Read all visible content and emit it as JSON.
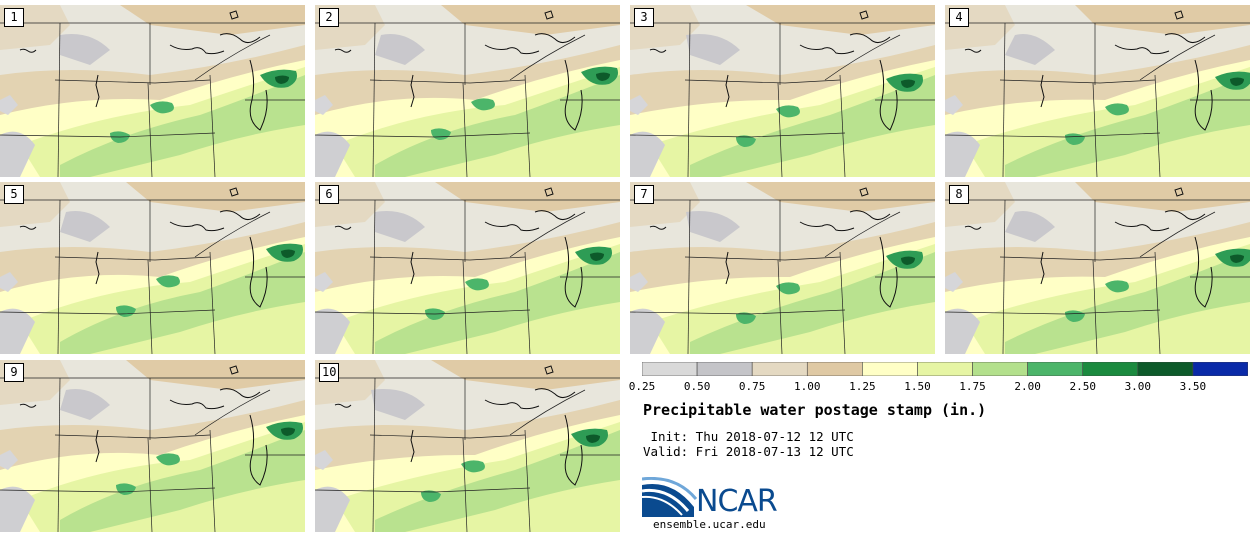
{
  "panels": [
    {
      "label": "1",
      "variant": 0
    },
    {
      "label": "2",
      "variant": 1
    },
    {
      "label": "3",
      "variant": 2
    },
    {
      "label": "4",
      "variant": 3
    },
    {
      "label": "5",
      "variant": 1
    },
    {
      "label": "6",
      "variant": 0
    },
    {
      "label": "7",
      "variant": 2
    },
    {
      "label": "8",
      "variant": 3
    },
    {
      "label": "9",
      "variant": 1
    },
    {
      "label": "10",
      "variant": 2
    }
  ],
  "colorbar": {
    "colors": [
      "#d9d9d9",
      "#c4c4c8",
      "#e4d9c2",
      "#dfc9a4",
      "#ffffc6",
      "#e6f5a4",
      "#b3e08c",
      "#4cb56a",
      "#1b8a3f",
      "#0d5a2a",
      "#0a2aa8"
    ],
    "ticks": [
      "0.25",
      "0.50",
      "0.75",
      "1.00",
      "1.25",
      "1.50",
      "1.75",
      "2.00",
      "2.50",
      "3.00",
      "3.50"
    ]
  },
  "title": "Precipitable water postage stamp (in.)",
  "init": " Init: Thu 2018-07-12 12 UTC",
  "valid": "Valid: Fri 2018-07-13 12 UTC",
  "logo_text": "NCAR",
  "logo_url": "ensemble.ucar.edu"
}
